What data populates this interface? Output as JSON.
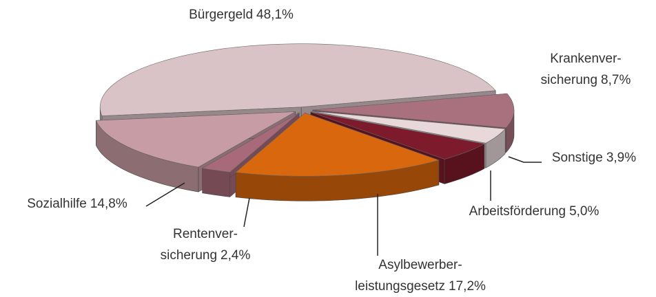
{
  "chart_data": {
    "type": "pie3d",
    "categories": [
      [
        "Bürgergeld"
      ],
      [
        "Krankenver-",
        "sicherung"
      ],
      [
        "Sonstige"
      ],
      [
        "Arbeitsförderung"
      ],
      [
        "Asylbewerber-",
        "leistungsgesetz"
      ],
      [
        "Rentenver-",
        "sicherung"
      ],
      [
        "Sozialhilfe"
      ]
    ],
    "values": [
      48.1,
      8.7,
      3.9,
      5.0,
      17.2,
      2.4,
      14.8
    ],
    "value_labels": [
      "48,1%",
      "8,7%",
      "3,9%",
      "5,0%",
      "17,2%",
      "2,4%",
      "14,8%"
    ],
    "colors": [
      "#d9c3c7",
      "#a9707e",
      "#e8d8da",
      "#7d1a2c",
      "#d9670e",
      "#a86a7a",
      "#c89ca4"
    ]
  }
}
